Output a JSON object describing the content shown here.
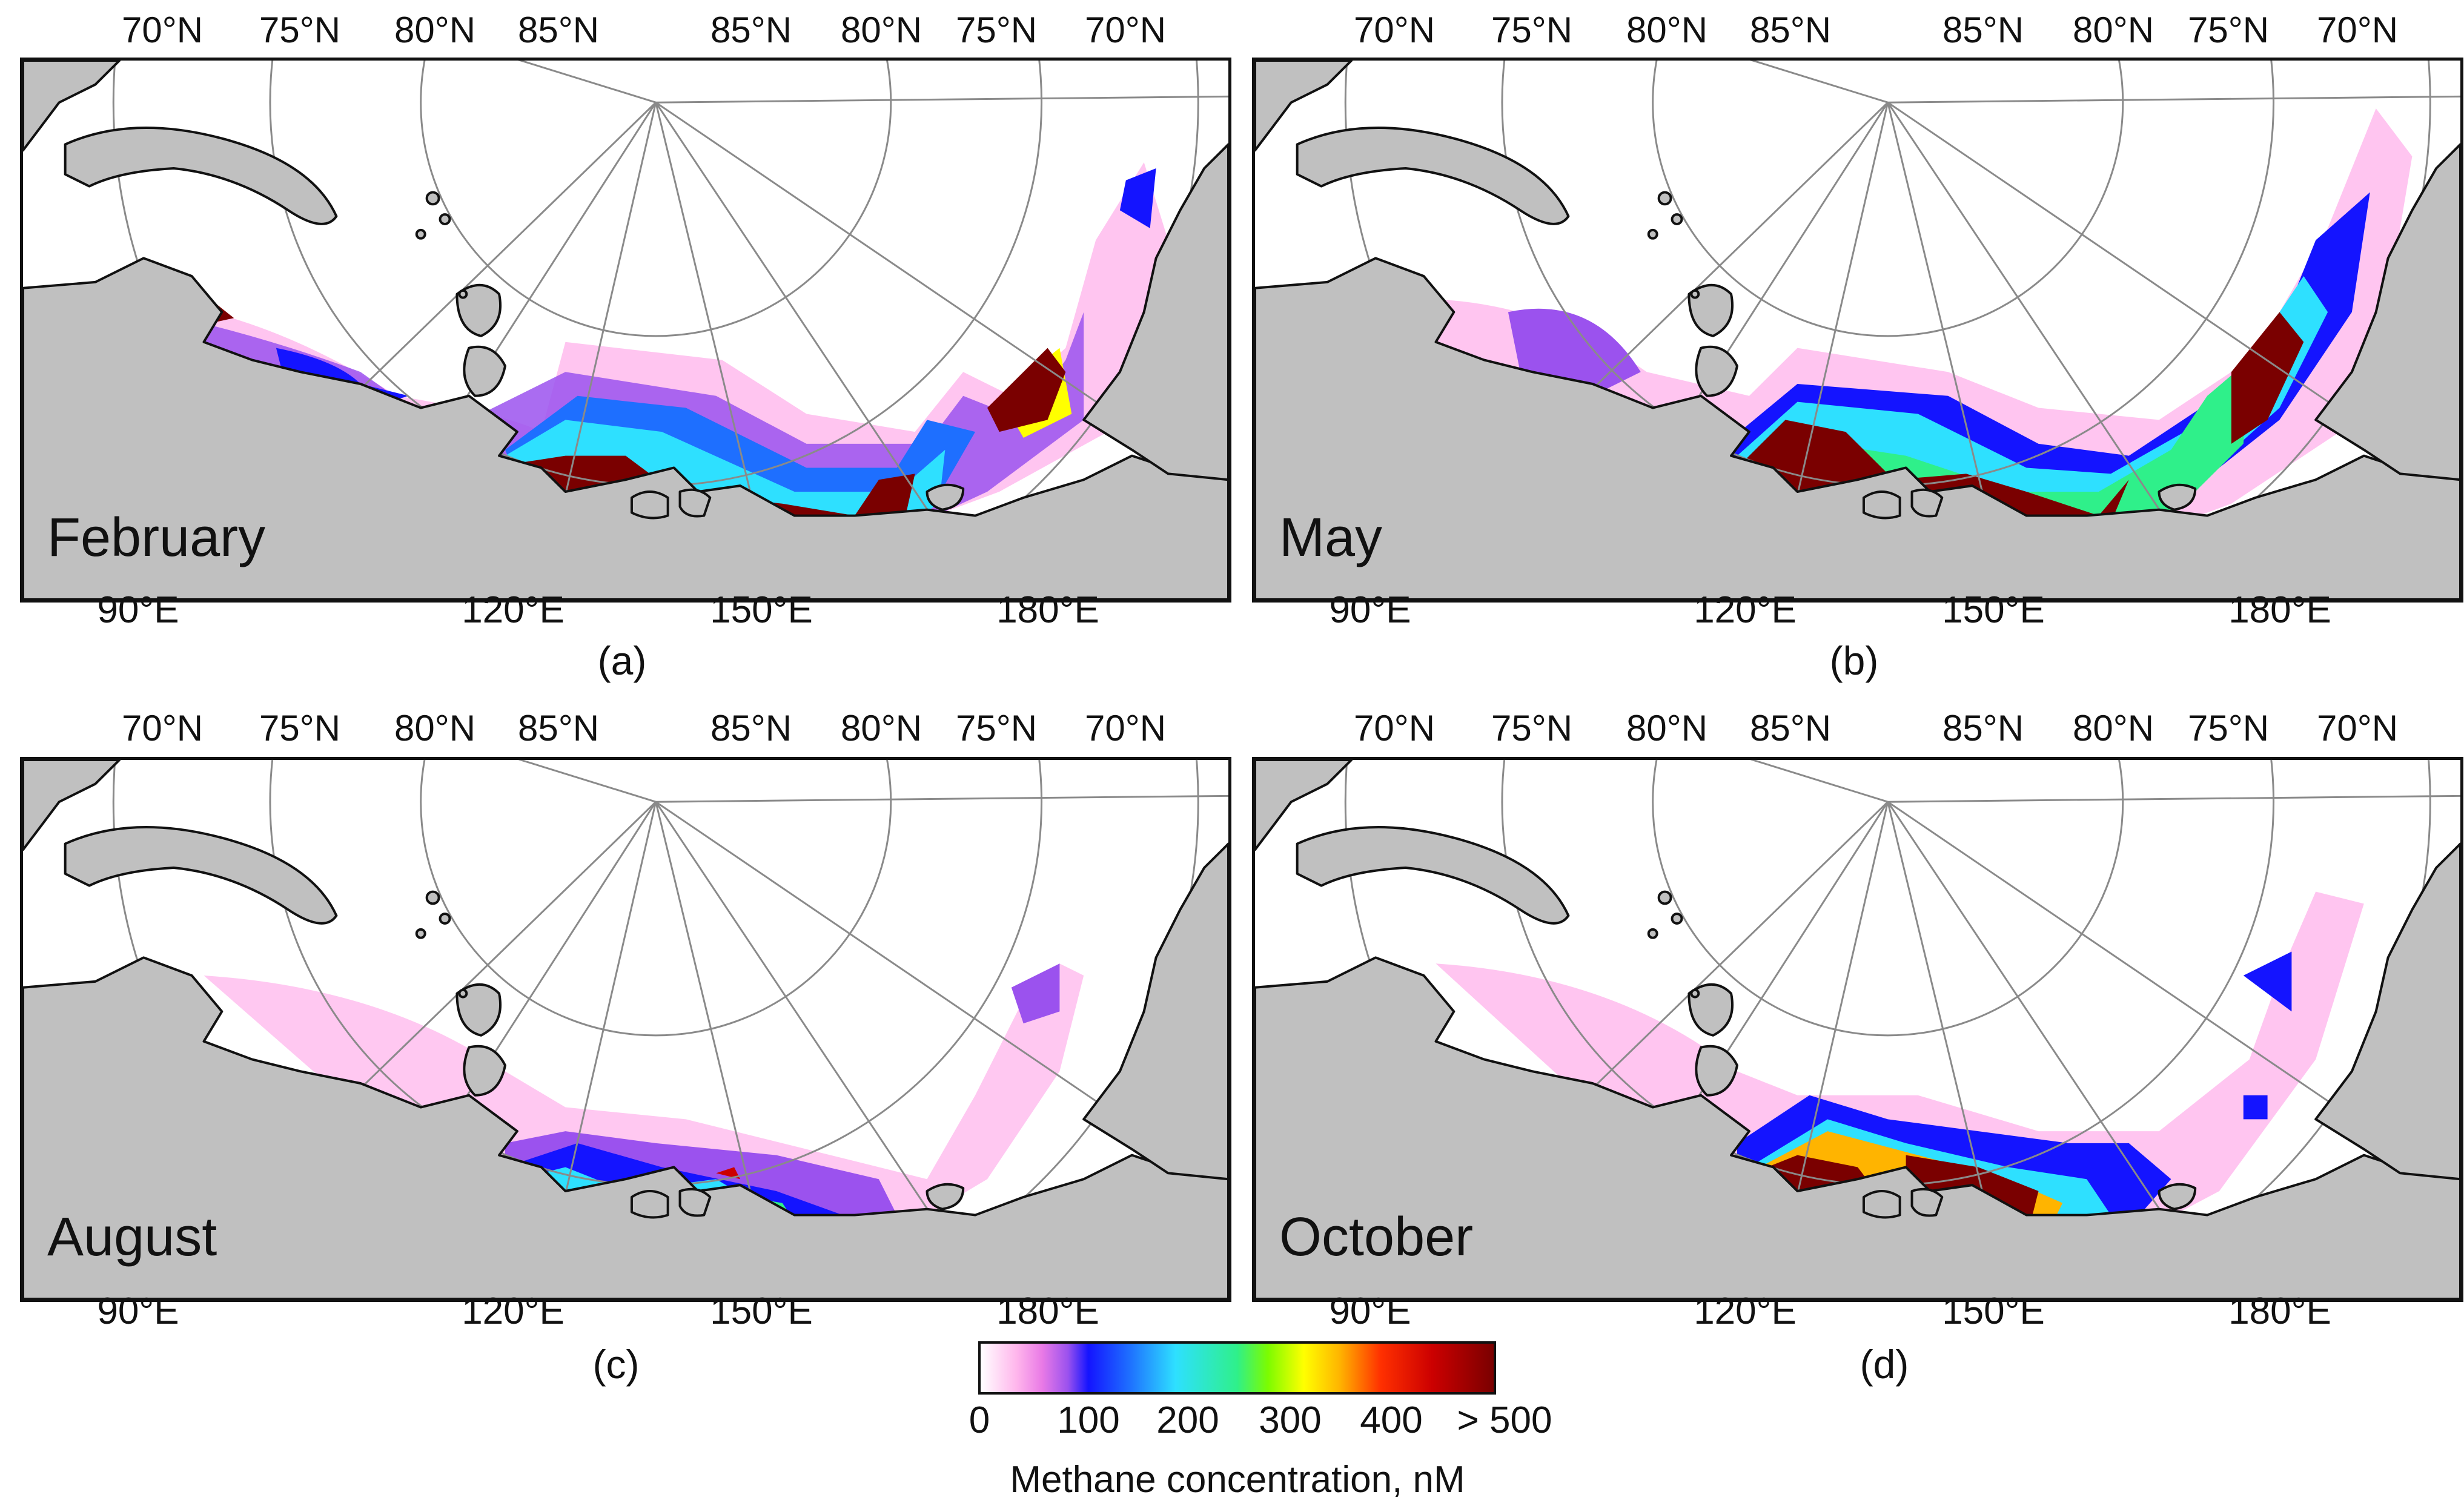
{
  "colors": {
    "land": "#c0c0c0",
    "ocean": "#ffffff",
    "gridlines": "#8a8a8a",
    "scale": [
      "#ffffff",
      "#ffb6ec",
      "#e97ae6",
      "#9b52ee",
      "#1414ff",
      "#1e6fff",
      "#2ee0ff",
      "#2ff08a",
      "#7cfc00",
      "#ffff00",
      "#ffb400",
      "#ff3000",
      "#cc0000",
      "#7a0000"
    ]
  },
  "latitude_labels": [
    "70°N",
    "75°N",
    "80°N",
    "85°N",
    "85°N",
    "80°N",
    "75°N",
    "70°N"
  ],
  "longitude_labels": [
    "90°E",
    "120°E",
    "150°E",
    "180°E"
  ],
  "panels": [
    {
      "label": "(a)",
      "month": "February"
    },
    {
      "label": "(b)",
      "month": "May"
    },
    {
      "label": "(c)",
      "month": "August"
    },
    {
      "label": "(d)",
      "month": "October"
    }
  ],
  "colorbar": {
    "ticks": [
      "0",
      "100",
      "200",
      "300",
      "400",
      "> 500"
    ],
    "title": "Methane concentration, nM"
  }
}
